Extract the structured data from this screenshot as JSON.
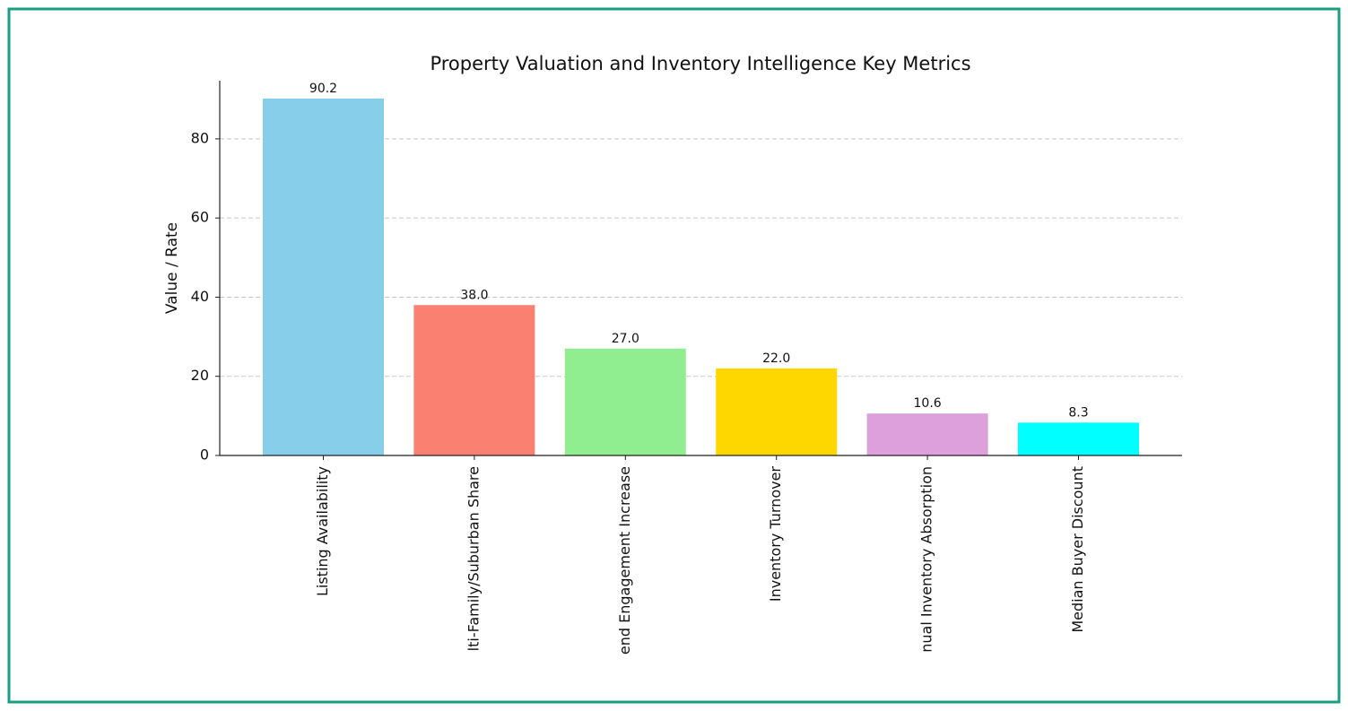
{
  "chart_data": {
    "type": "bar",
    "title": "Property Valuation and Inventory Intelligence Key Metrics",
    "y_label": "Value / Rate",
    "categories": [
      "Listing Availability",
      "lti-Family/Suburban Share",
      "end Engagement Increase",
      "Inventory Turnover",
      "nual Inventory Absorption",
      "Median Buyer Discount"
    ],
    "values": [
      90.2,
      38.0,
      27.0,
      22.0,
      10.6,
      8.3
    ],
    "value_labels": [
      "90.2",
      "38.0",
      "27.0",
      "22.0",
      "10.6",
      "8.3"
    ],
    "colors": [
      "#87ceeb",
      "#fa8072",
      "#90ee90",
      "#ffd700",
      "#dda0dd",
      "#00ffff"
    ],
    "ylim": [
      0,
      94.7
    ],
    "yticks": [
      0,
      20,
      40,
      60,
      80
    ],
    "grid": true
  }
}
